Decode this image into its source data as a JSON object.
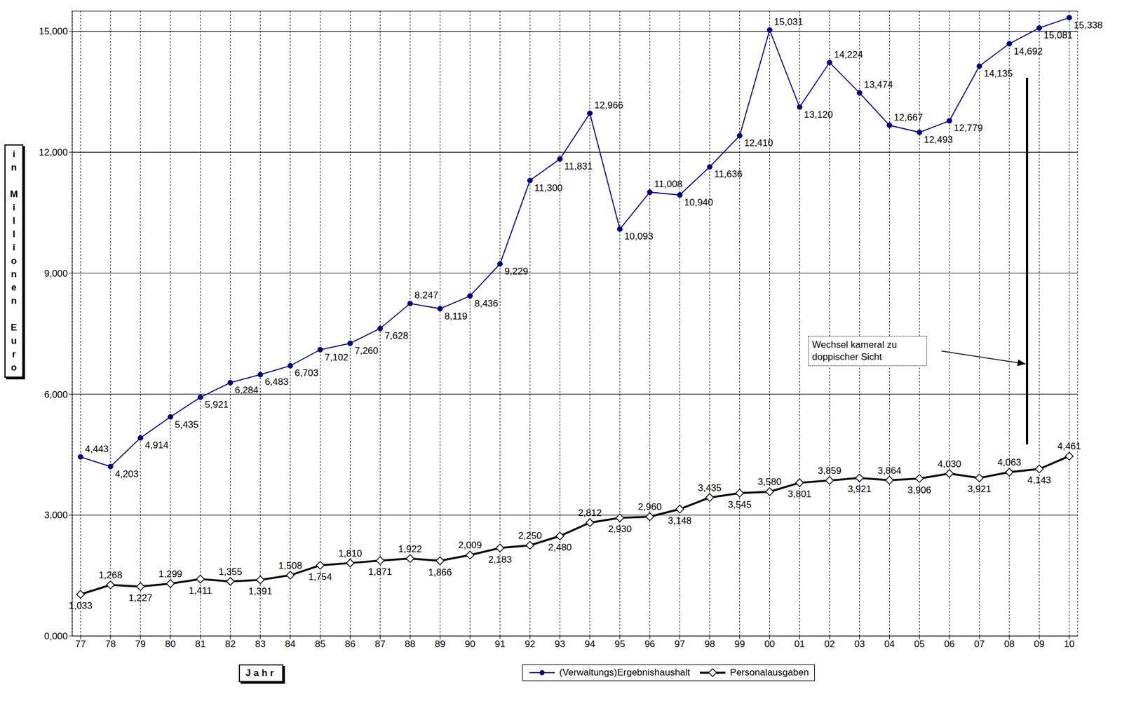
{
  "chart_data": {
    "type": "line",
    "x_label": "Jahr",
    "y_label": "in Millionen Euro",
    "annotation": "Wechsel kameral zu doppischer Sicht",
    "categories": [
      "77",
      "78",
      "79",
      "80",
      "81",
      "82",
      "83",
      "84",
      "85",
      "86",
      "87",
      "88",
      "89",
      "90",
      "91",
      "92",
      "93",
      "94",
      "95",
      "96",
      "97",
      "98",
      "99",
      "00",
      "01",
      "02",
      "03",
      "04",
      "05",
      "06",
      "07",
      "08",
      "09",
      "10"
    ],
    "series": [
      {
        "name": "(Verwaltungs)Ergebnishaushalt",
        "color": "#000080",
        "marker": "circle",
        "line_style": "solid",
        "values": [
          4443,
          4203,
          4914,
          5435,
          5921,
          6284,
          6483,
          6703,
          7102,
          7260,
          7628,
          8247,
          8119,
          8436,
          9229,
          11300,
          11831,
          12966,
          10093,
          11008,
          10940,
          11636,
          12410,
          15031,
          13120,
          14224,
          13474,
          12667,
          12493,
          12779,
          14135,
          14692,
          15081,
          15338
        ],
        "value_labels": [
          "4,443",
          "4,203",
          "4,914",
          "5,435",
          "5,921",
          "6,284",
          "6,483",
          "6,703",
          "7,102",
          "7,260",
          "7,628",
          "8,247",
          "8,119",
          "8,436",
          "9,229",
          "11,300",
          "11,831",
          "12,966",
          "10,093",
          "11,008",
          "10,940",
          "11,636",
          "12,410",
          "15,031",
          "13,120",
          "14,224",
          "13,474",
          "12,667",
          "12,493",
          "12,779",
          "14,135",
          "14,692",
          "15,081",
          "15,338"
        ]
      },
      {
        "name": "Personalausgaben",
        "color": "#000000",
        "marker": "diamond",
        "line_style": "solid",
        "values": [
          1033,
          1268,
          1227,
          1299,
          1411,
          1355,
          1391,
          1508,
          1754,
          1810,
          1871,
          1922,
          1866,
          2009,
          2183,
          2250,
          2480,
          2812,
          2930,
          2960,
          3148,
          3435,
          3545,
          3580,
          3801,
          3859,
          3921,
          3864,
          3906,
          4030,
          3921,
          4063,
          4143,
          4461
        ],
        "value_labels": [
          "1,033",
          "1,268",
          "1,227",
          "1,299",
          "1,411",
          "1,355",
          "1,391",
          "1,508",
          "1,754",
          "1,810",
          "1,871",
          "1,922",
          "1,866",
          "2,009",
          "2,183",
          "2,250",
          "2,480",
          "2,812",
          "2,930",
          "2,960",
          "3,148",
          "3,435",
          "3,545",
          "3,580",
          "3,801",
          "3,859",
          "3,921",
          "3,864",
          "3,906",
          "4,030",
          "3,921",
          "4,063",
          "4,143",
          "4,461"
        ]
      }
    ],
    "ylim": [
      0,
      15500
    ],
    "yticks": [
      {
        "value": 0,
        "label": "0,000"
      },
      {
        "value": 3000,
        "label": "3,000"
      },
      {
        "value": 6000,
        "label": "6,000"
      },
      {
        "value": 9000,
        "label": "9,000"
      },
      {
        "value": 12000,
        "label": "12,000"
      },
      {
        "value": 15000,
        "label": "15,000"
      }
    ],
    "grid": true,
    "data_labels": true,
    "legend": "bottom"
  }
}
